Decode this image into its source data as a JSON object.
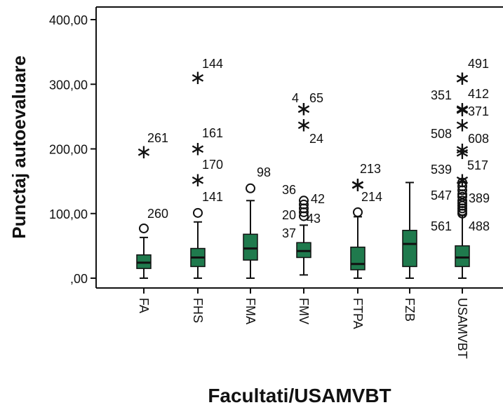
{
  "chart_data": {
    "type": "boxplot",
    "title": "",
    "xlabel": "Facultati/USAMVBT",
    "ylabel": "Punctaj autoevaluare",
    "ylim": [
      -5,
      410
    ],
    "yticks": [
      {
        "value": 0,
        "label": ",00"
      },
      {
        "value": 100,
        "label": "100,00"
      },
      {
        "value": 200,
        "label": "200,00"
      },
      {
        "value": 300,
        "label": "300,00"
      },
      {
        "value": 400,
        "label": "400,00"
      }
    ],
    "box_color": "#1f7a4d",
    "categories": [
      "FA",
      "FHS",
      "FMA",
      "FMV",
      "FTPA",
      "FZB",
      "USAMVBT"
    ],
    "boxes": [
      {
        "category": "FA",
        "min": 0,
        "q1": 15,
        "median": 24,
        "q3": 36,
        "max": 63
      },
      {
        "category": "FHS",
        "min": 0,
        "q1": 18,
        "median": 32,
        "q3": 46,
        "max": 87
      },
      {
        "category": "FMA",
        "min": 0,
        "q1": 28,
        "median": 46,
        "q3": 68,
        "max": 120
      },
      {
        "category": "FMV",
        "min": 5,
        "q1": 32,
        "median": 42,
        "q3": 55,
        "max": 82
      },
      {
        "category": "FTPA",
        "min": 0,
        "q1": 13,
        "median": 22,
        "q3": 48,
        "max": 95
      },
      {
        "category": "FZB",
        "min": 0,
        "q1": 18,
        "median": 53,
        "q3": 74,
        "max": 148
      },
      {
        "category": "USAMVBT",
        "min": 0,
        "q1": 18,
        "median": 32,
        "q3": 50,
        "max": 97
      }
    ],
    "outliers": [
      {
        "category": "FA",
        "value": 77,
        "marker": "circle",
        "label": "260"
      },
      {
        "category": "FA",
        "value": 196,
        "marker": "star",
        "label": "261"
      },
      {
        "category": "FHS",
        "value": 101,
        "marker": "circle",
        "label": "141"
      },
      {
        "category": "FHS",
        "value": 153,
        "marker": "star",
        "label": "170"
      },
      {
        "category": "FHS",
        "value": 201,
        "marker": "star",
        "label": "161"
      },
      {
        "category": "FHS",
        "value": 311,
        "marker": "star",
        "label": "144"
      },
      {
        "category": "FMA",
        "value": 139,
        "marker": "circle",
        "label": "98"
      },
      {
        "category": "FMV",
        "value": 96,
        "marker": "circle",
        "label": "37"
      },
      {
        "category": "FMV",
        "value": 102,
        "marker": "circle",
        "label": "20"
      },
      {
        "category": "FMV",
        "value": 108,
        "marker": "circle",
        "label": "43"
      },
      {
        "category": "FMV",
        "value": 114,
        "marker": "circle",
        "label": "42"
      },
      {
        "category": "FMV",
        "value": 120,
        "marker": "circle",
        "label": "36"
      },
      {
        "category": "FMV",
        "value": 238,
        "marker": "star",
        "label": "24"
      },
      {
        "category": "FMV",
        "value": 263,
        "marker": "star",
        "label": "65"
      },
      {
        "category": "FMV",
        "value": 263,
        "marker": "star",
        "label": "4"
      },
      {
        "category": "FTPA",
        "value": 102,
        "marker": "circle",
        "label": ""
      },
      {
        "category": "FTPA",
        "value": 145,
        "marker": "star",
        "label": "214"
      },
      {
        "category": "FTPA",
        "value": 146,
        "marker": "star",
        "label": "213"
      },
      {
        "category": "USAMVBT",
        "value": 100,
        "marker": "circle",
        "label": "488"
      },
      {
        "category": "USAMVBT",
        "value": 104,
        "marker": "circle",
        "label": ""
      },
      {
        "category": "USAMVBT",
        "value": 108,
        "marker": "circle",
        "label": ""
      },
      {
        "category": "USAMVBT",
        "value": 112,
        "marker": "circle",
        "label": "561"
      },
      {
        "category": "USAMVBT",
        "value": 116,
        "marker": "circle",
        "label": ""
      },
      {
        "category": "USAMVBT",
        "value": 120,
        "marker": "circle",
        "label": ""
      },
      {
        "category": "USAMVBT",
        "value": 126,
        "marker": "circle",
        "label": "389"
      },
      {
        "category": "USAMVBT",
        "value": 130,
        "marker": "circle",
        "label": ""
      },
      {
        "category": "USAMVBT",
        "value": 136,
        "marker": "circle",
        "label": "547"
      },
      {
        "category": "USAMVBT",
        "value": 142,
        "marker": "circle",
        "label": ""
      },
      {
        "category": "USAMVBT",
        "value": 148,
        "marker": "circle",
        "label": ""
      },
      {
        "category": "USAMVBT",
        "value": 153,
        "marker": "star",
        "label": "517"
      },
      {
        "category": "USAMVBT",
        "value": 195,
        "marker": "star",
        "label": "539"
      },
      {
        "category": "USAMVBT",
        "value": 200,
        "marker": "star",
        "label": "608"
      },
      {
        "category": "USAMVBT",
        "value": 238,
        "marker": "star",
        "label": "508"
      },
      {
        "category": "USAMVBT",
        "value": 261,
        "marker": "star",
        "label": "371"
      },
      {
        "category": "USAMVBT",
        "value": 263,
        "marker": "star",
        "label": "412"
      },
      {
        "category": "USAMVBT",
        "value": 310,
        "marker": "star",
        "label": "491"
      },
      {
        "category": "USAMVBT",
        "value": 310,
        "marker": "star",
        "label": "351"
      }
    ],
    "grid": false,
    "legend": "none"
  }
}
